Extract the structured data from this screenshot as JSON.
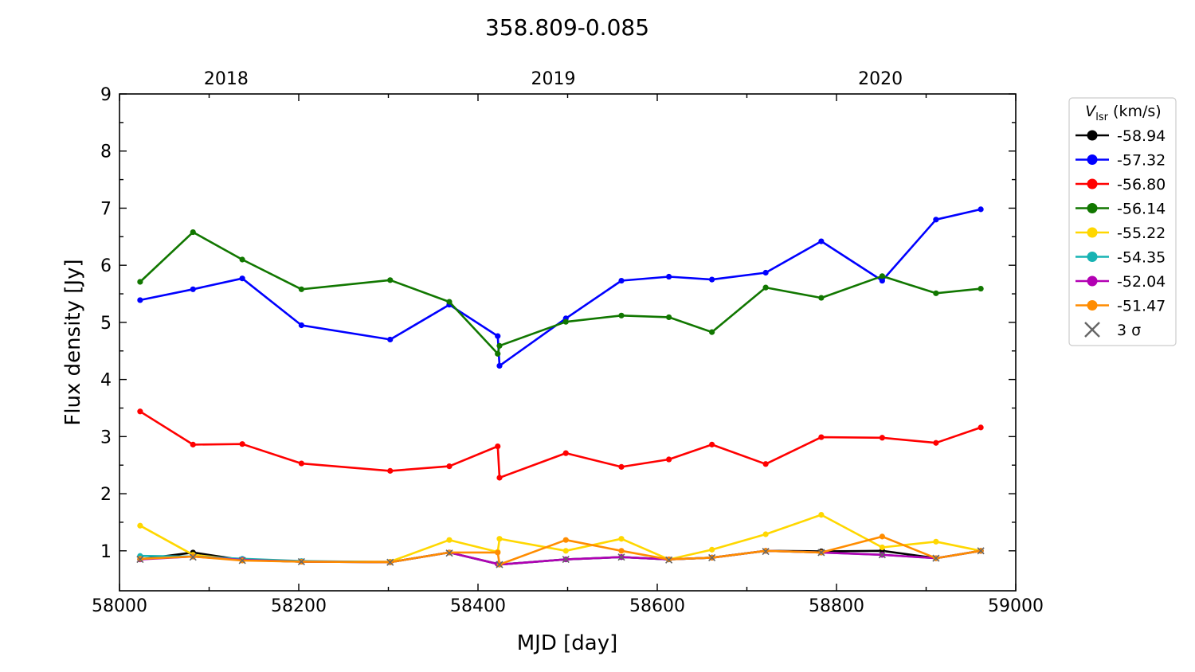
{
  "chart_data": {
    "type": "line",
    "title": "358.809-0.085",
    "xlabel": "MJD [day]",
    "ylabel": "Flux density [Jy]",
    "xlim": [
      58000,
      59000
    ],
    "ylim": [
      0.3,
      9
    ],
    "xticks": [
      58000,
      58200,
      58400,
      58600,
      58800,
      59000
    ],
    "yticks": [
      1,
      2,
      3,
      4,
      5,
      6,
      7,
      8,
      9
    ],
    "top_axis": {
      "labels": [
        {
          "text": "2018",
          "mjd": 58119
        },
        {
          "text": "2019",
          "mjd": 58484
        },
        {
          "text": "2020",
          "mjd": 58849
        }
      ]
    },
    "grid": false,
    "legend": {
      "title_main": "V",
      "title_sub": "lsr",
      "title_units": " (km/s)",
      "placement": "outside-right-top",
      "sigma_label": "3 σ"
    },
    "series": [
      {
        "name": "-58.94",
        "color": "#000000",
        "x": [
          58023,
          58082,
          58137,
          58203,
          58302,
          58368,
          58422,
          58424,
          58498,
          58560,
          58613,
          58661,
          58721,
          58783,
          58851,
          58911,
          58961
        ],
        "y": [
          0.85,
          0.97,
          0.84,
          0.81,
          0.8,
          0.97,
          0.77,
          0.76,
          0.85,
          0.89,
          0.85,
          0.88,
          1.0,
          0.99,
          1.0,
          0.87,
          1.0
        ]
      },
      {
        "name": "-57.32",
        "color": "#0000ff",
        "x": [
          58023,
          58082,
          58137,
          58203,
          58302,
          58368,
          58422,
          58424,
          58498,
          58560,
          58613,
          58661,
          58721,
          58783,
          58851,
          58911,
          58961
        ],
        "y": [
          5.39,
          5.58,
          5.77,
          4.95,
          4.7,
          5.31,
          4.76,
          4.24,
          5.07,
          5.73,
          5.8,
          5.75,
          5.87,
          6.42,
          5.73,
          6.8,
          6.98
        ]
      },
      {
        "name": "-56.80",
        "color": "#ff0000",
        "x": [
          58023,
          58082,
          58137,
          58203,
          58302,
          58368,
          58422,
          58424,
          58498,
          58560,
          58613,
          58661,
          58721,
          58783,
          58851,
          58911,
          58961
        ],
        "y": [
          3.44,
          2.86,
          2.87,
          2.53,
          2.4,
          2.48,
          2.83,
          2.28,
          2.71,
          2.47,
          2.6,
          2.86,
          2.52,
          2.99,
          2.98,
          2.89,
          3.16
        ]
      },
      {
        "name": "-56.14",
        "color": "#117700",
        "x": [
          58023,
          58082,
          58137,
          58203,
          58302,
          58368,
          58422,
          58424,
          58498,
          58560,
          58613,
          58661,
          58721,
          58783,
          58851,
          58911,
          58961
        ],
        "y": [
          5.71,
          6.58,
          6.1,
          5.58,
          5.74,
          5.36,
          4.45,
          4.59,
          5.01,
          5.12,
          5.09,
          4.83,
          5.61,
          5.43,
          5.81,
          5.51,
          5.59
        ]
      },
      {
        "name": "-55.22",
        "color": "#ffd700",
        "x": [
          58023,
          58082,
          58137,
          58203,
          58302,
          58368,
          58422,
          58424,
          58498,
          58560,
          58613,
          58661,
          58721,
          58783,
          58851,
          58911,
          58961
        ],
        "y": [
          1.44,
          0.93,
          0.84,
          0.81,
          0.81,
          1.19,
          0.98,
          1.21,
          1.0,
          1.21,
          0.85,
          1.02,
          1.29,
          1.63,
          1.06,
          1.16,
          1.0
        ]
      },
      {
        "name": "-54.35",
        "color": "#17b3b3",
        "x": [
          58023,
          58082,
          58137,
          58203,
          58302,
          58368,
          58422,
          58424,
          58498,
          58560,
          58613,
          58661,
          58721,
          58783,
          58851,
          58911,
          58961
        ],
        "y": [
          0.91,
          0.9,
          0.86,
          0.82,
          0.8,
          0.97,
          0.77,
          0.76,
          0.85,
          0.89,
          0.85,
          0.88,
          1.0,
          0.97,
          0.93,
          0.87,
          1.0
        ]
      },
      {
        "name": "-52.04",
        "color": "#b300b3",
        "x": [
          58023,
          58082,
          58137,
          58203,
          58302,
          58368,
          58422,
          58424,
          58498,
          58560,
          58613,
          58661,
          58721,
          58783,
          58851,
          58911,
          58961
        ],
        "y": [
          0.85,
          0.9,
          0.84,
          0.81,
          0.8,
          0.97,
          0.77,
          0.76,
          0.85,
          0.89,
          0.85,
          0.88,
          1.0,
          0.97,
          0.93,
          0.87,
          1.0
        ]
      },
      {
        "name": "-51.47",
        "color": "#ff8c00",
        "x": [
          58023,
          58082,
          58137,
          58203,
          58302,
          58368,
          58422,
          58424,
          58498,
          58560,
          58613,
          58661,
          58721,
          58783,
          58851,
          58911,
          58961
        ],
        "y": [
          0.86,
          0.9,
          0.83,
          0.81,
          0.8,
          0.97,
          0.97,
          0.76,
          1.19,
          1.0,
          0.85,
          0.88,
          1.0,
          0.97,
          1.25,
          0.87,
          1.0
        ]
      }
    ],
    "sigma_markers": {
      "color": "#666666",
      "x": [
        58023,
        58082,
        58137,
        58203,
        58302,
        58368,
        58424,
        58498,
        58560,
        58613,
        58661,
        58721,
        58783,
        58851,
        58911,
        58961
      ],
      "y": [
        0.85,
        0.89,
        0.83,
        0.81,
        0.8,
        0.96,
        0.76,
        0.85,
        0.89,
        0.84,
        0.88,
        0.99,
        0.97,
        0.93,
        0.87,
        1.0
      ]
    }
  }
}
